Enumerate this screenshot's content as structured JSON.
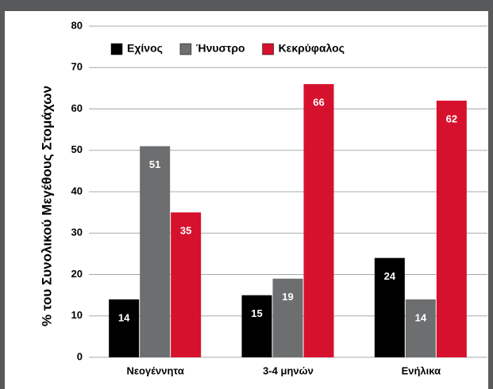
{
  "chart_data": {
    "type": "bar",
    "y_label": "% του Συνολικού Μεγέθους Στομάχων",
    "categories": [
      "Νεογέννητα",
      "3-4 μηνών",
      "Ενήλικα"
    ],
    "series": [
      {
        "name": "Εχίνος",
        "color": "#000000",
        "values": [
          14,
          15,
          24
        ]
      },
      {
        "name": "Ήνυστρο",
        "color": "#6d6e70",
        "values": [
          51,
          19,
          14
        ]
      },
      {
        "name": "Κεκρύφαλος",
        "color": "#d6112e",
        "values": [
          35,
          66,
          62
        ]
      }
    ],
    "ylim": [
      0,
      80
    ],
    "yticks": [
      0,
      10,
      20,
      30,
      40,
      50,
      60,
      70,
      80
    ],
    "grid": true,
    "legend": "upper left",
    "data_labels": true
  }
}
